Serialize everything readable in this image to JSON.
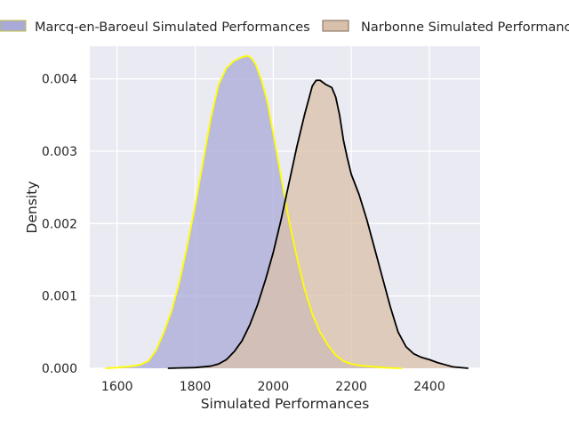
{
  "chart_data": {
    "type": "area",
    "title": "",
    "xlabel": "Simulated Performances",
    "ylabel": "Density",
    "xlim": [
      1530,
      2530
    ],
    "ylim": [
      0,
      0.00445
    ],
    "x_ticks": [
      1600,
      1800,
      2000,
      2200,
      2400
    ],
    "x_tick_labels": [
      "1600",
      "1800",
      "2000",
      "2200",
      "2400"
    ],
    "y_ticks": [
      0,
      0.001,
      0.002,
      0.003,
      0.004
    ],
    "y_tick_labels": [
      "0.000",
      "0.001",
      "0.002",
      "0.003",
      "0.004"
    ],
    "grid": true,
    "legend_position": "top",
    "series": [
      {
        "name": "Marcq-en-Baroeul Simulated Performances",
        "fill_color": "#aaaad8",
        "line_color": "#ffff00",
        "x": [
          1570,
          1600,
          1640,
          1660,
          1680,
          1700,
          1720,
          1740,
          1760,
          1780,
          1800,
          1820,
          1840,
          1860,
          1880,
          1900,
          1920,
          1935,
          1945,
          1955,
          1970,
          1985,
          2000,
          2020,
          2040,
          2060,
          2080,
          2100,
          2120,
          2140,
          2160,
          2180,
          2200,
          2220,
          2240,
          2260,
          2280,
          2300,
          2330
        ],
        "y": [
          0,
          1e-05,
          3e-05,
          5e-05,
          0.0001,
          0.00025,
          0.0005,
          0.0008,
          0.0012,
          0.0017,
          0.00225,
          0.00285,
          0.00345,
          0.00392,
          0.00415,
          0.00425,
          0.0043,
          0.00432,
          0.00428,
          0.0042,
          0.00398,
          0.00368,
          0.00325,
          0.00265,
          0.00205,
          0.00155,
          0.0011,
          0.00075,
          0.0005,
          0.00032,
          0.00018,
          0.0001,
          6e-05,
          4e-05,
          3e-05,
          2e-05,
          1e-05,
          5e-06,
          0
        ]
      },
      {
        "name": "Narbonne Simulated Performances",
        "fill_color": "#d9c0aa",
        "line_color": "#000000",
        "x": [
          1730,
          1760,
          1800,
          1840,
          1860,
          1880,
          1900,
          1920,
          1940,
          1960,
          1980,
          2000,
          2020,
          2040,
          2060,
          2080,
          2100,
          2110,
          2120,
          2135,
          2150,
          2160,
          2170,
          2180,
          2190,
          2200,
          2220,
          2240,
          2260,
          2280,
          2300,
          2320,
          2340,
          2360,
          2380,
          2400,
          2420,
          2440,
          2460,
          2500
        ],
        "y": [
          0,
          5e-06,
          1e-05,
          3e-05,
          6e-05,
          0.00012,
          0.00023,
          0.00038,
          0.0006,
          0.00088,
          0.00122,
          0.0016,
          0.00205,
          0.00255,
          0.00305,
          0.0035,
          0.0039,
          0.00398,
          0.00398,
          0.00392,
          0.00388,
          0.00375,
          0.0035,
          0.00315,
          0.0029,
          0.00268,
          0.0024,
          0.00205,
          0.00165,
          0.00125,
          0.00085,
          0.0005,
          0.0003,
          0.0002,
          0.00015,
          0.00012,
          8e-05,
          5e-05,
          2e-05,
          0
        ]
      }
    ]
  }
}
